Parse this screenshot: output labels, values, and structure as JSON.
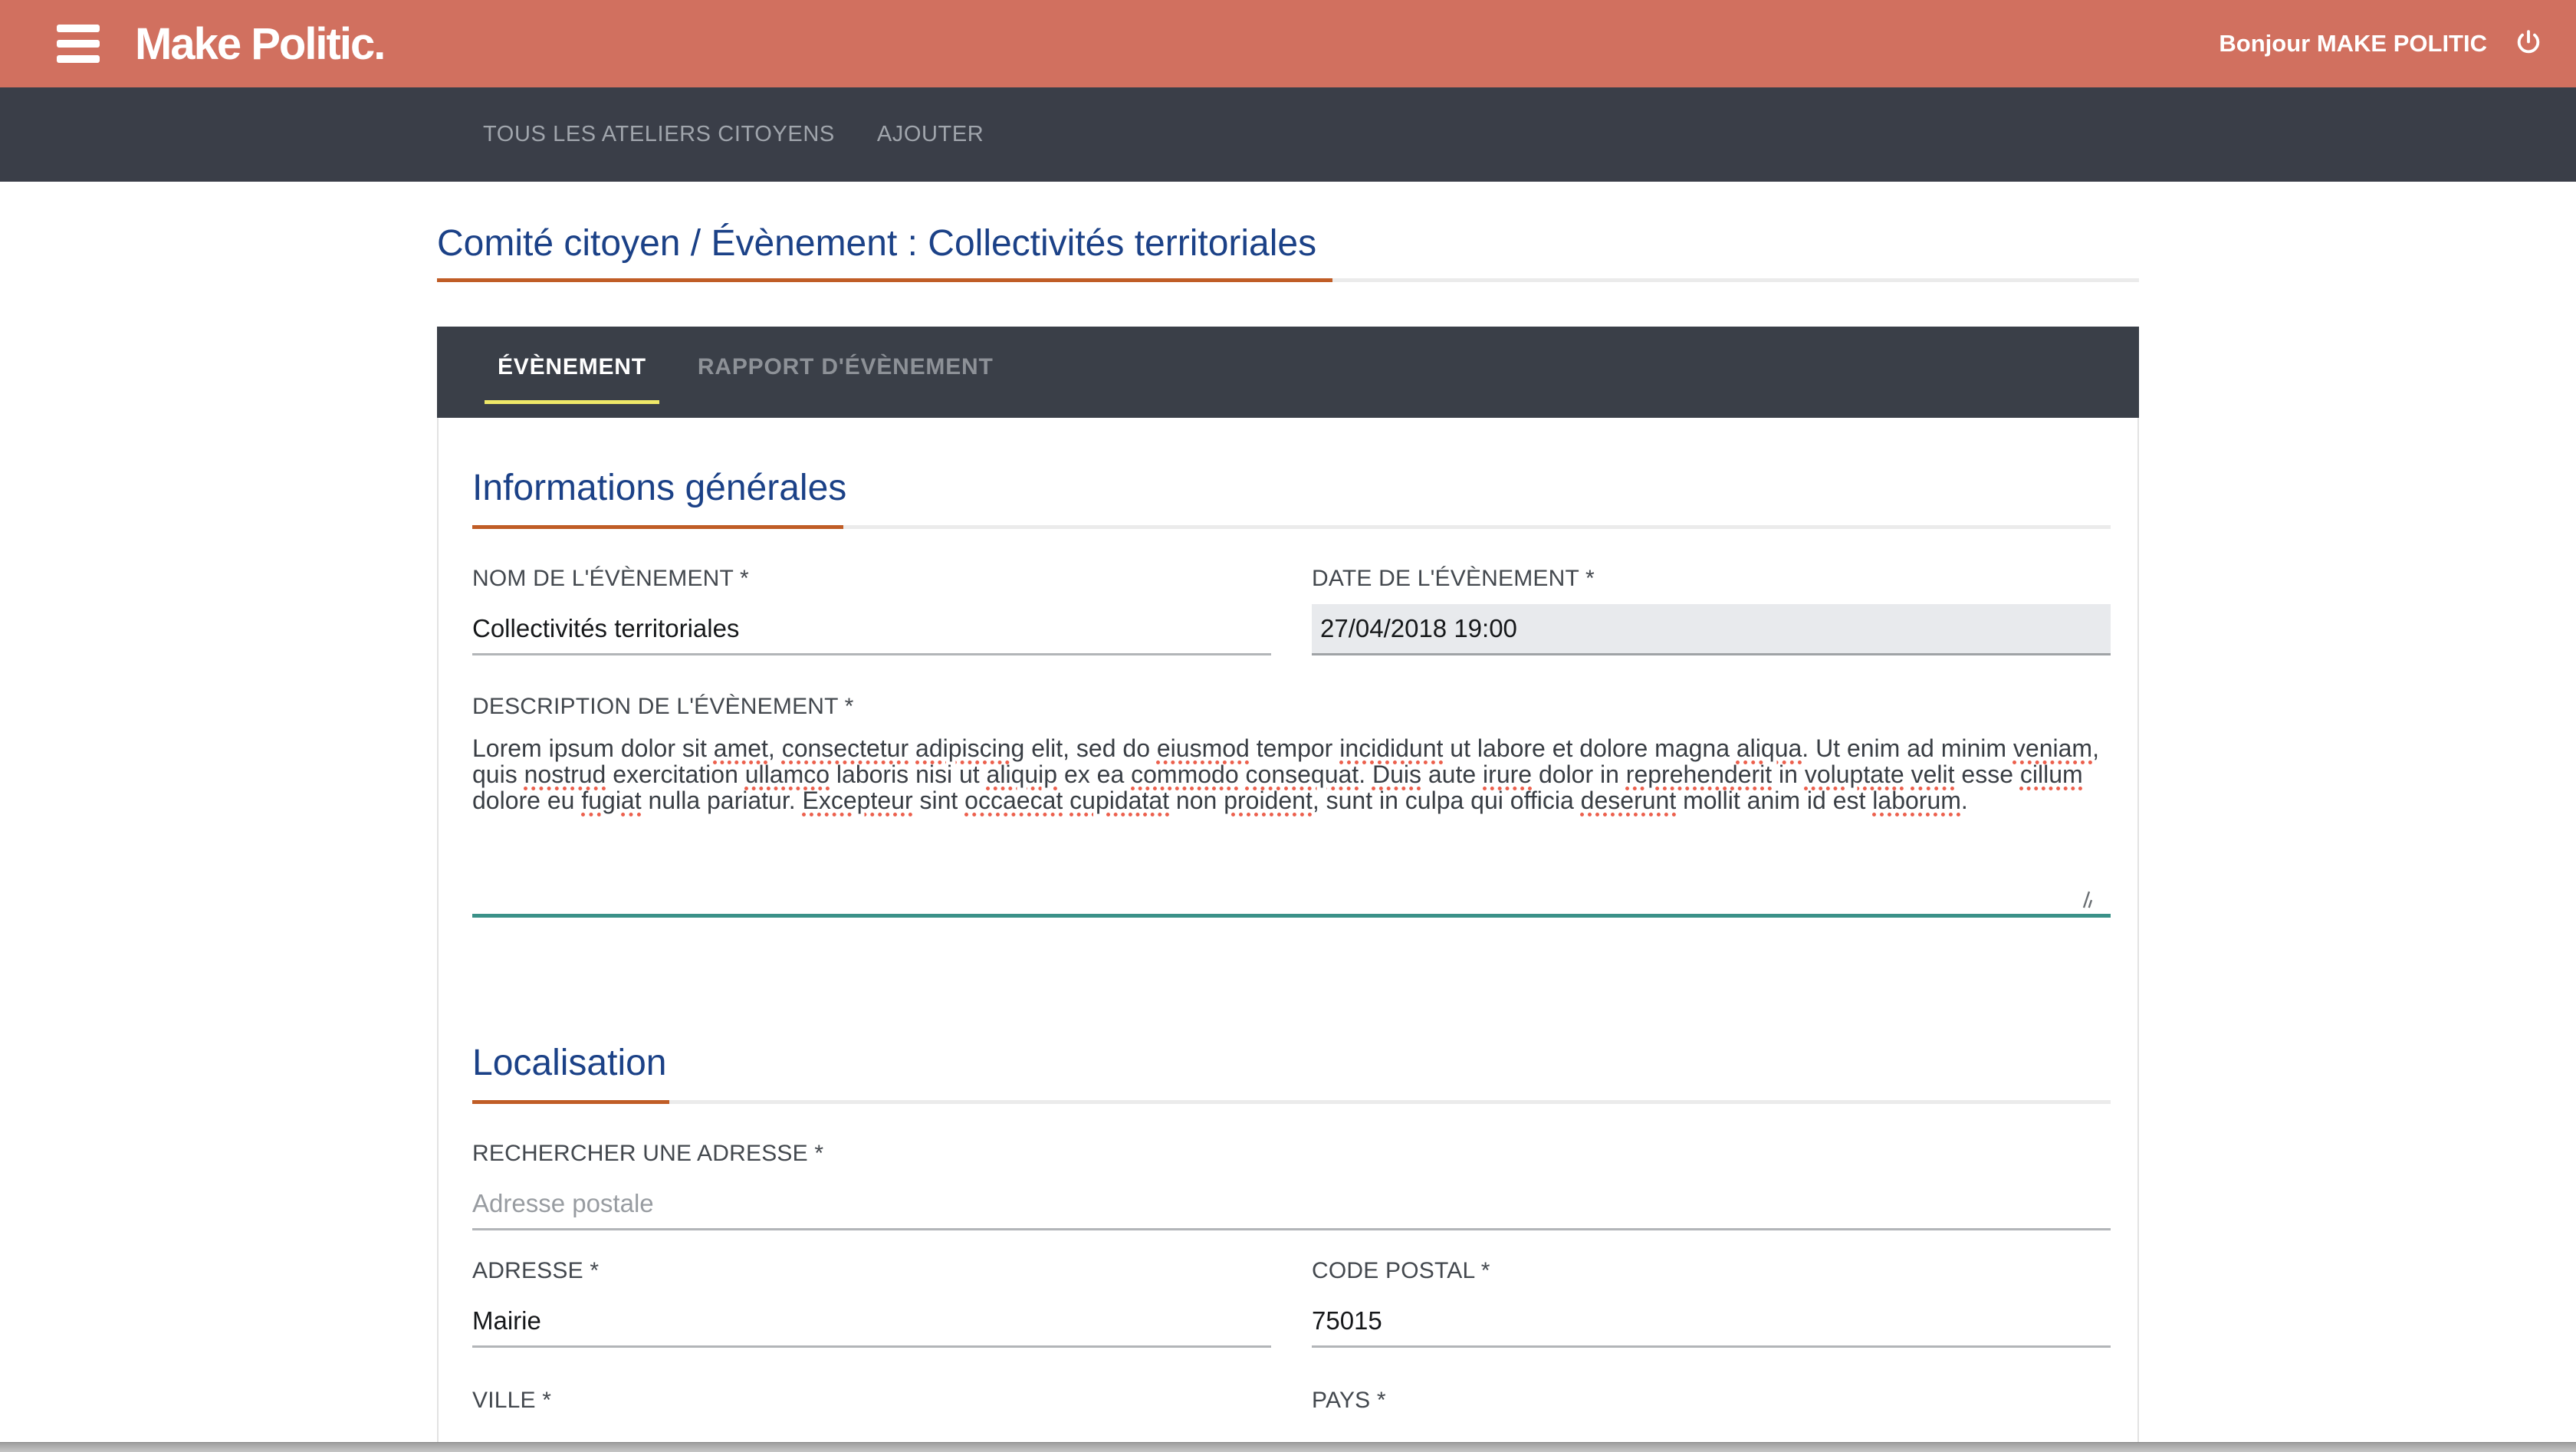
{
  "header": {
    "brand": "Make Politic.",
    "greeting": "Bonjour MAKE POLITIC"
  },
  "navbar": {
    "items": [
      {
        "label": "TOUS LES ATELIERS CITOYENS"
      },
      {
        "label": "AJOUTER"
      }
    ]
  },
  "page": {
    "title": "Comité citoyen / Évènement : Collectivités territoriales"
  },
  "tabs": [
    {
      "label": "ÉVÈNEMENT",
      "active": true
    },
    {
      "label": "RAPPORT D'ÉVÈNEMENT",
      "active": false
    }
  ],
  "form": {
    "sections": [
      {
        "title": "Informations générales"
      },
      {
        "title": "Localisation"
      }
    ],
    "fields": {
      "name": {
        "label": "NOM DE L'ÉVÈNEMENT *",
        "value": "Collectivités territoriales"
      },
      "date": {
        "label": "DATE DE L'ÉVÈNEMENT *",
        "value": "27/04/2018 19:00"
      },
      "description": {
        "label": "DESCRIPTION DE L'ÉVÈNEMENT *",
        "value": "Lorem ipsum dolor sit amet, consectetur adipiscing elit, sed do eiusmod tempor incididunt ut labore et dolore magna aliqua. Ut enim ad minim veniam, quis nostrud exercitation ullamco laboris nisi ut aliquip ex ea commodo consequat. Duis aute irure dolor in reprehenderit in voluptate velit esse cillum dolore eu fugiat nulla pariatur. Excepteur sint occaecat cupidatat non proident, sunt in culpa qui officia deserunt mollit anim id est laborum.",
        "misspelled_words": [
          "amet",
          "consectetur",
          "adipiscing",
          "eiusmod",
          "incididunt",
          "aliqua",
          "veniam",
          "nostrud",
          "ullamco",
          "aliquip",
          "commodo",
          "consequat",
          "Duis",
          "irure",
          "reprehenderit",
          "voluptate",
          "velit",
          "cillum",
          "fugiat",
          "Excepteur",
          "occaecat",
          "cupidatat",
          "proident",
          "deserunt",
          "laborum"
        ]
      },
      "search_address": {
        "label": "RECHERCHER UNE ADRESSE *",
        "placeholder": "Adresse postale",
        "value": ""
      },
      "address": {
        "label": "ADRESSE *",
        "value": "Mairie"
      },
      "postal_code": {
        "label": "CODE POSTAL *",
        "value": "75015"
      },
      "city": {
        "label": "VILLE *",
        "value": ""
      },
      "country": {
        "label": "PAYS *",
        "value": ""
      }
    }
  },
  "colors": {
    "header_bg": "#d1705f",
    "navbar_bg": "#3a3e48",
    "heading_blue": "#1b4187",
    "rule_orange": "#c05d26",
    "tab_indicator_yellow": "#f0e968",
    "textarea_focus_teal": "#3a9188",
    "date_field_bg": "#e8eaed",
    "spellcheck_red": "#ec604d"
  }
}
